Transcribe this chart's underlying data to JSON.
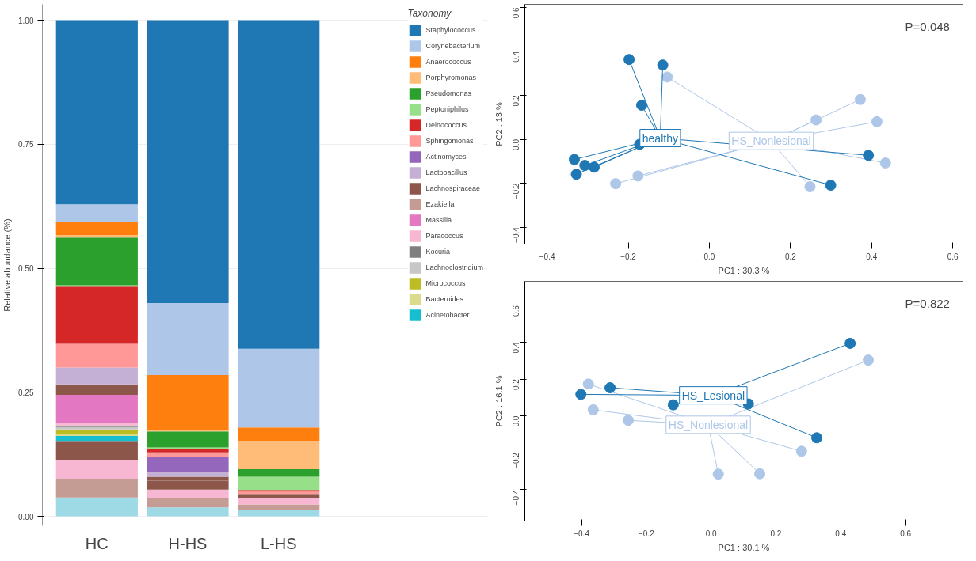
{
  "chart_data": [
    {
      "type": "bar",
      "stacked": true,
      "categories": [
        "HC",
        "H-HS",
        "L-HS"
      ],
      "ylabel": "Relative abundance (%)",
      "legend_title": "Taxonomy",
      "legend": "right",
      "grid": "y",
      "ylim": [
        -0.019,
        1.032
      ],
      "yticks": [
        {
          "value": 0,
          "label": "0.00"
        },
        {
          "value": 0.25,
          "label": "0.25"
        },
        {
          "value": 0.5,
          "label": "0.50"
        },
        {
          "value": 0.75,
          "label": "0.75"
        },
        {
          "value": 1,
          "label": "1.00"
        }
      ],
      "series": [
        {
          "color": "#9edae5",
          "values": [
            0.038,
            0.018,
            0.012
          ]
        },
        {
          "color": "#c49c94",
          "values": [
            0.038,
            0.018,
            0.012
          ]
        },
        {
          "color": "#f7b6d2",
          "values": [
            0.038,
            0.018,
            0.012
          ]
        },
        {
          "color": "#8c564b",
          "values": [
            0.038,
            0.018,
            0.009
          ]
        },
        {
          "name": "Acinetobacter",
          "color": "#17becf",
          "values": [
            0.01,
            0,
            0
          ]
        },
        {
          "name": "Bacteroides",
          "color": "#dbdb8d",
          "values": [
            0.003,
            0,
            0
          ]
        },
        {
          "name": "Micrococcus",
          "color": "#bcbd22",
          "values": [
            0.01,
            0,
            0
          ]
        },
        {
          "name": "Lachnoclostridium",
          "color": "#c7c7c7",
          "values": [
            0.005,
            0,
            0
          ]
        },
        {
          "name": "Kocuria",
          "color": "#7f7f7f",
          "values": [
            0.003,
            0,
            0
          ]
        },
        {
          "name": "Paracoccus",
          "color": "#f7b6d2",
          "values": [
            0.005,
            0,
            0
          ]
        },
        {
          "name": "Massilia",
          "color": "#e377c2",
          "values": [
            0.057,
            0,
            0
          ]
        },
        {
          "name": "Ezakiella",
          "color": "#c49c94",
          "values": [
            0,
            0,
            0
          ]
        },
        {
          "name": "Lachnospiraceae",
          "color": "#8c564b",
          "values": [
            0.021,
            0.008,
            0
          ]
        },
        {
          "name": "Lactobacillus",
          "color": "#c5b0d5",
          "values": [
            0.034,
            0.009,
            0
          ]
        },
        {
          "name": "Actinomyces",
          "color": "#9467bd",
          "values": [
            0,
            0.03,
            0
          ]
        },
        {
          "name": "Sphingomonas",
          "color": "#ff9896",
          "values": [
            0.048,
            0.01,
            0.005
          ]
        },
        {
          "name": "Deinococcus",
          "color": "#d62728",
          "values": [
            0.115,
            0.006,
            0.003
          ]
        },
        {
          "name": "Peptoniphilus",
          "color": "#98df8a",
          "values": [
            0.003,
            0.004,
            0.027
          ]
        },
        {
          "name": "Pseudomonas",
          "color": "#2ca02c",
          "values": [
            0.096,
            0.032,
            0.015
          ]
        },
        {
          "name": "Porphyromonas",
          "color": "#ffbb78",
          "values": [
            0.005,
            0.003,
            0.057
          ]
        },
        {
          "name": "Anaerococcus",
          "color": "#ff7f0e",
          "values": [
            0.027,
            0.111,
            0.027
          ]
        },
        {
          "name": "Corynebacterium",
          "color": "#aec7e8",
          "values": [
            0.035,
            0.145,
            0.159
          ]
        },
        {
          "name": "Staphylococcus",
          "color": "#1f77b4",
          "values": [
            0.371,
            0.57,
            0.662
          ]
        }
      ]
    },
    {
      "type": "scatter",
      "marker": "circle",
      "legend": false,
      "xlabel": "PC1 : 30.3 %",
      "ylabel": "PC2 : 13 %",
      "annotations": [
        "P=0.048"
      ],
      "xlim": [
        -0.455,
        0.625
      ],
      "ylim": [
        -0.477,
        0.614
      ],
      "xticks": [
        -0.4,
        -0.2,
        {
          "value": 0,
          "label": "0.0"
        },
        0.2,
        0.4,
        0.6
      ],
      "yticks": [
        -0.4,
        -0.2,
        {
          "value": 0,
          "label": "0.0"
        },
        0.2,
        0.4,
        0.6
      ],
      "series": [
        {
          "name": "HS_Nonlesional",
          "color": "#aec7e8",
          "x": [
            -0.104,
            0.372,
            0.263,
            0.413,
            0.434,
            0.248,
            -0.176,
            -0.231
          ],
          "values": [
            0.283,
            0.181,
            0.088,
            0.08,
            -0.108,
            -0.216,
            -0.167,
            -0.202
          ]
        },
        {
          "name": "healthy",
          "color": "#1f77b4",
          "x": [
            -0.198,
            -0.115,
            -0.167,
            -0.333,
            -0.307,
            -0.284,
            -0.328,
            0.392,
            0.299,
            -0.172
          ],
          "values": [
            0.363,
            0.338,
            0.155,
            -0.092,
            -0.119,
            -0.127,
            -0.159,
            -0.073,
            -0.209,
            -0.023
          ]
        }
      ]
    },
    {
      "type": "scatter",
      "marker": "circle",
      "legend": false,
      "xlabel": "PC1 : 30.1 %",
      "ylabel": "PC2 : 16.1 %",
      "annotations": [
        "P=0.822"
      ],
      "xlim": [
        -0.575,
        0.777
      ],
      "ylim": [
        -0.571,
        0.731
      ],
      "xticks": [
        -0.4,
        -0.2,
        {
          "value": 0,
          "label": "0.0"
        },
        0.2,
        0.4,
        0.6
      ],
      "yticks": [
        -0.4,
        -0.2,
        {
          "value": 0,
          "label": "0.0"
        },
        0.2,
        0.4,
        0.6
      ],
      "series": [
        {
          "name": "HS_Nonlesional",
          "color": "#aec7e8",
          "x": [
            0.485,
            -0.379,
            -0.364,
            -0.256,
            0.279,
            0.022,
            0.15
          ],
          "values": [
            0.303,
            0.173,
            0.033,
            -0.024,
            -0.192,
            -0.316,
            -0.314
          ]
        },
        {
          "name": "HS_Lesional",
          "color": "#1f77b4",
          "x": [
            0.429,
            -0.312,
            -0.402,
            0.326,
            -0.117,
            0.115
          ],
          "values": [
            0.394,
            0.153,
            0.117,
            -0.119,
            0.06,
            0.065
          ]
        }
      ]
    }
  ]
}
